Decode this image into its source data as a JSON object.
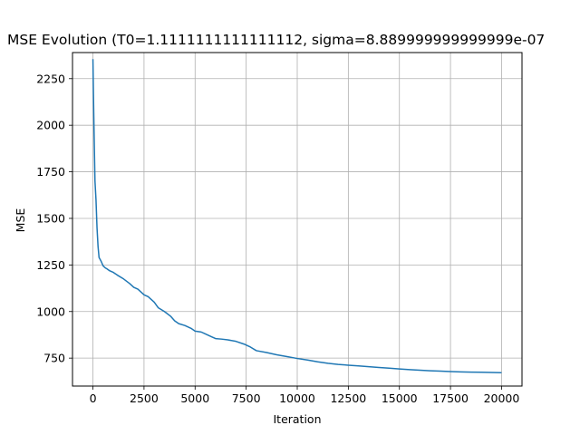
{
  "chart_data": {
    "type": "line",
    "title": "MSE Evolution (T0=1.1111111111111112, sigma=8.889999999999999e-07",
    "xlabel": "Iteration",
    "ylabel": "MSE",
    "xlim": [
      -1000,
      21000
    ],
    "ylim": [
      600,
      2390
    ],
    "grid": true,
    "x_ticks": [
      0,
      2500,
      5000,
      7500,
      10000,
      12500,
      15000,
      17500,
      20000
    ],
    "y_ticks": [
      750,
      1000,
      1250,
      1500,
      1750,
      2000,
      2250
    ],
    "series": [
      {
        "color": "#1f77b4",
        "x": [
          0,
          20,
          50,
          100,
          150,
          200,
          250,
          300,
          350,
          400,
          500,
          600,
          700,
          800,
          1000,
          1200,
          1500,
          1800,
          2000,
          2200,
          2500,
          2700,
          3000,
          3200,
          3500,
          3800,
          4000,
          4200,
          4500,
          4800,
          5000,
          5300,
          5500,
          5800,
          6000,
          6300,
          6600,
          7000,
          7400,
          7700,
          8000,
          8500,
          9000,
          9500,
          10000,
          10500,
          11000,
          11500,
          12000,
          12500,
          13000,
          13500,
          14000,
          14500,
          15000,
          15500,
          16000,
          16500,
          17000,
          17500,
          18000,
          18500,
          19000,
          19500,
          20000
        ],
        "values": [
          2355,
          2200,
          2000,
          1700,
          1600,
          1450,
          1350,
          1290,
          1280,
          1270,
          1245,
          1235,
          1228,
          1220,
          1210,
          1195,
          1175,
          1150,
          1130,
          1120,
          1090,
          1080,
          1050,
          1020,
          1000,
          975,
          950,
          935,
          925,
          910,
          895,
          890,
          880,
          865,
          855,
          852,
          848,
          840,
          825,
          810,
          790,
          780,
          768,
          758,
          748,
          740,
          730,
          722,
          716,
          712,
          708,
          704,
          700,
          696,
          692,
          688,
          685,
          682,
          680,
          678,
          676,
          675,
          674,
          673,
          672
        ]
      }
    ]
  }
}
